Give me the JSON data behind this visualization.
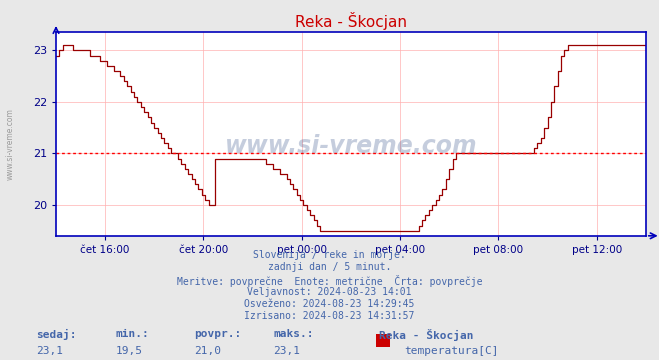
{
  "title": "Reka - Škocjan",
  "title_color": "#cc0000",
  "bg_color": "#e8e8e8",
  "plot_bg_color": "#ffffff",
  "line_color": "#990000",
  "avg_line_color": "#ff0000",
  "avg_value": 21.0,
  "ylim": [
    19.4,
    23.35
  ],
  "yticks": [
    20,
    21,
    22,
    23
  ],
  "x_tick_positions": [
    2,
    6,
    10,
    14,
    18,
    22
  ],
  "x_labels": [
    "čet 16:00",
    "čet 20:00",
    "pet 00:00",
    "pet 04:00",
    "pet 08:00",
    "pet 12:00"
  ],
  "grid_color": "#ffb0b0",
  "axis_color": "#0000bb",
  "tick_color": "#000088",
  "text_color": "#4466aa",
  "info_lines": [
    "Slovenija / reke in morje.",
    "zadnji dan / 5 minut.",
    "Meritve: povprečne  Enote: metrične  Črta: povprečje",
    "Veljavnost: 2024-08-23 14:01",
    "Osveženo: 2024-08-23 14:29:45",
    "Izrisano: 2024-08-23 14:31:57"
  ],
  "stats_labels": [
    "sedaj:",
    "min.:",
    "povpr.:",
    "maks.:"
  ],
  "stats_values": [
    "23,1",
    "19,5",
    "21,0",
    "23,1"
  ],
  "legend_station": "Reka - Škocjan",
  "legend_item": "temperatura[C]",
  "legend_color": "#cc0000",
  "watermark": "www.si-vreme.com",
  "watermark_color": "#1a3a7a",
  "sidebar_text": "www.si-vreme.com",
  "temperature_data": [
    22.9,
    23.0,
    23.1,
    23.1,
    23.1,
    23.0,
    23.0,
    23.0,
    23.0,
    23.0,
    22.9,
    22.9,
    22.9,
    22.8,
    22.8,
    22.7,
    22.7,
    22.6,
    22.6,
    22.5,
    22.4,
    22.3,
    22.2,
    22.1,
    22.0,
    21.9,
    21.8,
    21.7,
    21.6,
    21.5,
    21.4,
    21.3,
    21.2,
    21.1,
    21.0,
    21.0,
    20.9,
    20.8,
    20.7,
    20.6,
    20.5,
    20.4,
    20.3,
    20.2,
    20.1,
    20.0,
    20.0,
    20.9,
    20.9,
    20.9,
    20.9,
    20.9,
    20.9,
    20.9,
    20.9,
    20.9,
    20.9,
    20.9,
    20.9,
    20.9,
    20.9,
    20.9,
    20.8,
    20.8,
    20.7,
    20.7,
    20.6,
    20.6,
    20.5,
    20.4,
    20.3,
    20.2,
    20.1,
    20.0,
    19.9,
    19.8,
    19.7,
    19.6,
    19.5,
    19.5,
    19.5,
    19.5,
    19.5,
    19.5,
    19.5,
    19.5,
    19.5,
    19.5,
    19.5,
    19.5,
    19.5,
    19.5,
    19.5,
    19.5,
    19.5,
    19.5,
    19.5,
    19.5,
    19.5,
    19.5,
    19.5,
    19.5,
    19.5,
    19.5,
    19.5,
    19.5,
    19.5,
    19.6,
    19.7,
    19.8,
    19.9,
    20.0,
    20.1,
    20.2,
    20.3,
    20.5,
    20.7,
    20.9,
    21.0,
    21.0,
    21.0,
    21.0,
    21.0,
    21.0,
    21.0,
    21.0,
    21.0,
    21.0,
    21.0,
    21.0,
    21.0,
    21.0,
    21.0,
    21.0,
    21.0,
    21.0,
    21.0,
    21.0,
    21.0,
    21.0,
    21.0,
    21.1,
    21.2,
    21.3,
    21.5,
    21.7,
    22.0,
    22.3,
    22.6,
    22.9,
    23.0,
    23.1,
    23.1,
    23.1,
    23.1,
    23.1,
    23.1,
    23.1,
    23.1,
    23.1,
    23.1,
    23.1,
    23.1,
    23.1,
    23.1,
    23.1,
    23.1,
    23.1,
    23.1,
    23.1,
    23.1,
    23.1,
    23.1,
    23.1,
    23.1
  ]
}
